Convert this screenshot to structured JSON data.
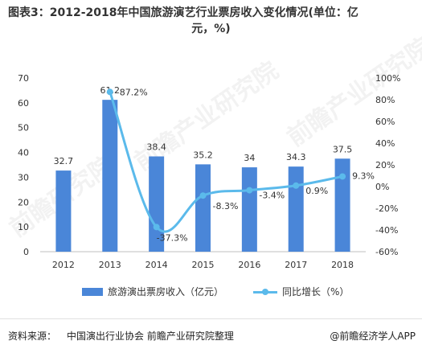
{
  "title_line1": "图表3：2012-2018年中国旅游演艺行业票房收入变化情况(单位：亿",
  "title_line2": "元，%)",
  "legend": {
    "bar_label": "旅游演出票房收入（亿元）",
    "line_label": "同比增长（%）"
  },
  "footer": {
    "source_label": "资料来源：",
    "source_text": "中国演出行业协会 前瞻产业研究院整理",
    "brand": "@前瞻经济学人APP"
  },
  "watermark": [
    "前瞻产业研究院",
    "前瞻产业研究院",
    "前瞻研究院"
  ],
  "colors": {
    "bar": "#4a86d8",
    "line": "#5bbaeb",
    "text": "#333333"
  },
  "chart_data": {
    "type": "bar+line",
    "categories": [
      "2012",
      "2013",
      "2014",
      "2015",
      "2016",
      "2017",
      "2018"
    ],
    "bars": {
      "name": "旅游演出票房收入（亿元）",
      "values": [
        32.7,
        61.2,
        38.4,
        35.2,
        34,
        34.3,
        37.5
      ],
      "labels": [
        "32.7",
        "61.2",
        "38.4",
        "35.2",
        "34",
        "34.3",
        "37.5"
      ]
    },
    "line": {
      "name": "同比增长（%）",
      "values": [
        null,
        87.2,
        -37.3,
        -8.3,
        -3.4,
        0.9,
        9.3
      ],
      "labels": [
        "",
        "87.2%",
        "-37.3%",
        "-8.3%",
        "-3.4%",
        "0.9%",
        "9.3%"
      ]
    },
    "y_left": {
      "min": 0,
      "max": 70,
      "ticks": [
        "0",
        "10",
        "20",
        "30",
        "40",
        "50",
        "60",
        "70"
      ]
    },
    "y_right": {
      "min": -60,
      "max": 100,
      "ticks": [
        "-60%",
        "-40%",
        "-20%",
        "0%",
        "20%",
        "40%",
        "60%",
        "80%",
        "100%"
      ]
    },
    "grid": false,
    "legend_position": "bottom"
  }
}
